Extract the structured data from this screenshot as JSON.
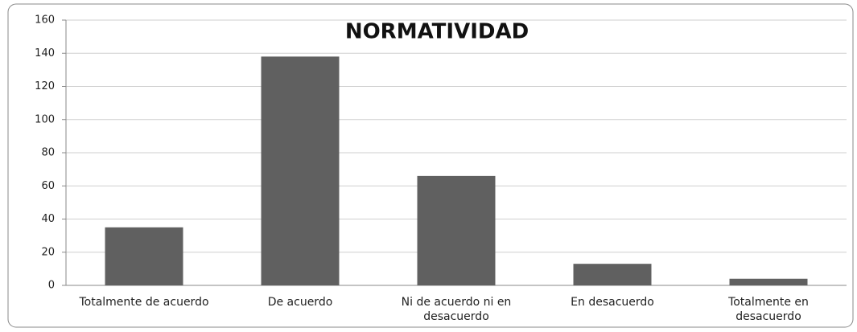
{
  "chart_data": {
    "type": "bar",
    "title": "NORMATIVIDAD",
    "categories": [
      "Totalmente de acuerdo",
      "De acuerdo",
      "Ni de acuerdo ni en desacuerdo",
      "En desacuerdo",
      "Totalmente en desacuerdo"
    ],
    "values": [
      35,
      138,
      66,
      13,
      4
    ],
    "color": "#606060",
    "ylim": [
      0,
      160
    ],
    "yticks": [
      0,
      20,
      40,
      60,
      80,
      100,
      120,
      140,
      160
    ],
    "grid": true
  }
}
